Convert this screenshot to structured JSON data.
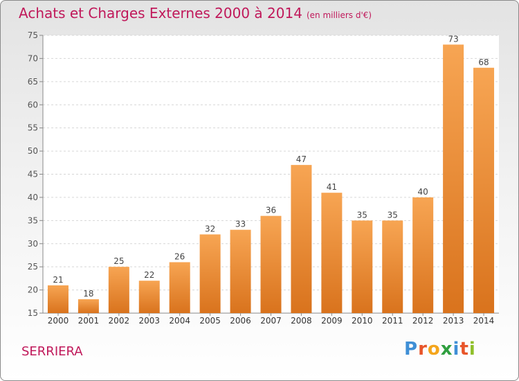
{
  "chart_data": {
    "type": "bar",
    "title": "Achats et Charges Externes 2000 à 2014",
    "unit": "(en milliers d'€)",
    "categories": [
      "2000",
      "2001",
      "2002",
      "2003",
      "2004",
      "2005",
      "2006",
      "2007",
      "2008",
      "2009",
      "2010",
      "2011",
      "2012",
      "2013",
      "2014"
    ],
    "values": [
      21,
      18,
      25,
      22,
      26,
      32,
      33,
      36,
      47,
      41,
      35,
      35,
      40,
      73,
      68
    ],
    "yticks": [
      15,
      20,
      25,
      30,
      35,
      40,
      45,
      50,
      55,
      60,
      65,
      70,
      75
    ],
    "ylim": [
      15,
      75
    ],
    "grid": true,
    "bar_color": "#f0963e"
  },
  "place_name": "SERRIERA",
  "logo": {
    "letters": [
      "P",
      "r",
      "o",
      "x",
      "i",
      "t",
      "i"
    ],
    "colors": [
      "#3f8fd6",
      "#e8552a",
      "#f4a51c",
      "#2f9f3f",
      "#3f8fd6",
      "#e8552a",
      "#8fbf2a"
    ]
  }
}
